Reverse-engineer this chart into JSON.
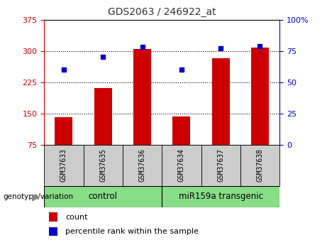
{
  "title": "GDS2063 / 246922_at",
  "categories": [
    "GSM37633",
    "GSM37635",
    "GSM37636",
    "GSM37634",
    "GSM37637",
    "GSM37638"
  ],
  "bar_values": [
    140,
    210,
    305,
    143,
    283,
    308
  ],
  "dot_values": [
    60,
    70,
    78,
    60,
    77,
    79
  ],
  "ylim_left": [
    75,
    375
  ],
  "ylim_right": [
    0,
    100
  ],
  "yticks_left": [
    75,
    150,
    225,
    300,
    375
  ],
  "yticks_right": [
    0,
    25,
    50,
    75,
    100
  ],
  "bar_color": "#cc0000",
  "dot_color": "#0000cc",
  "bar_width": 0.45,
  "control_label": "control",
  "transgenic_label": "miR159a transgenic",
  "group_box_color": "#88dd88",
  "sample_box_color": "#cccccc",
  "genotype_label": "genotype/variation",
  "legend_bar_label": "count",
  "legend_dot_label": "percentile rank within the sample",
  "title_color": "#333333",
  "tick_color_left": "#cc0000",
  "tick_color_right": "#0000cc",
  "grid_yticks": [
    150,
    225,
    300
  ]
}
